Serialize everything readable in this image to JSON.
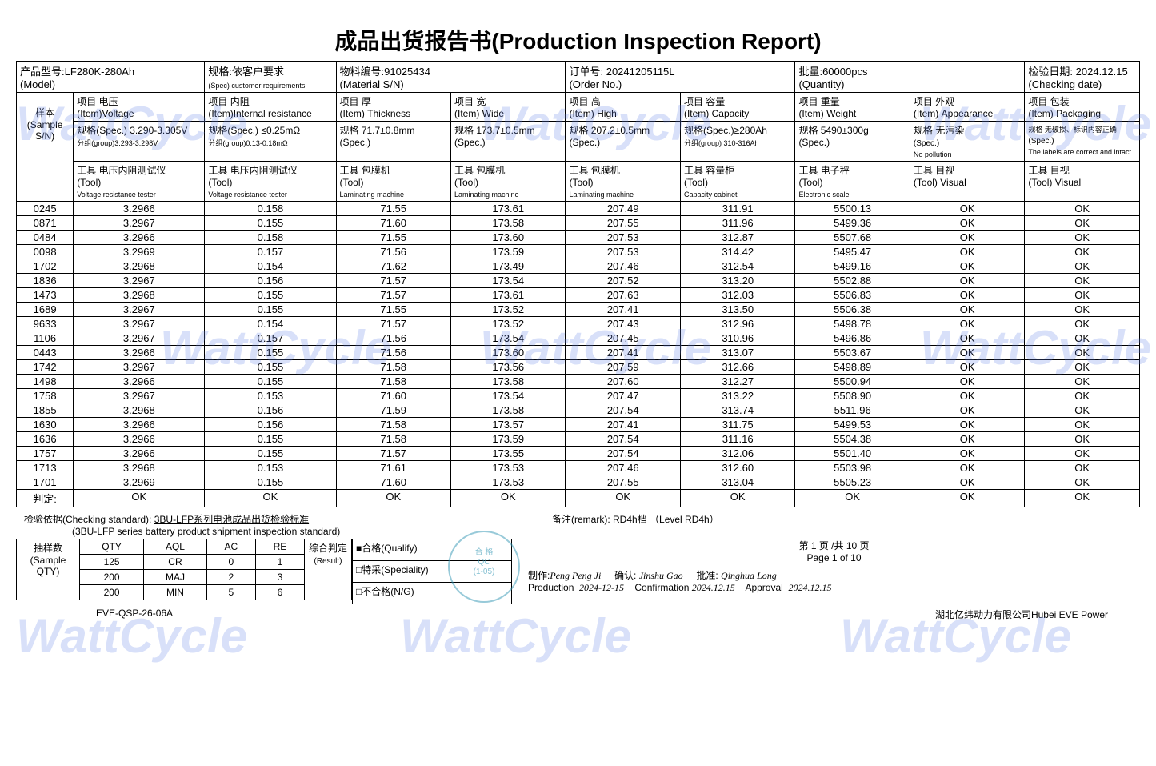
{
  "title": "成品出货报告书(Production Inspection Report)",
  "watermark_text": "WattCycle",
  "header": {
    "model_label_cn": "产品型号:",
    "model_label_en": "(Model)",
    "model_value": "LF280K-280Ah",
    "spec_label_cn": "规格:依客户要求",
    "spec_label_en": "(Spec) customer requirements",
    "material_label_cn": "物料编号:",
    "material_label_en": "(Material S/N)",
    "material_value": "91025434",
    "order_label_cn": "订单号:",
    "order_label_en": "(Order No.)",
    "order_value": "20241205115L",
    "qty_label_cn": "批量:",
    "qty_label_en": "(Quantity)",
    "qty_value": "60000pcs",
    "date_label_cn": "检验日期:",
    "date_label_en": "(Checking date)",
    "date_value": "2024.12.15"
  },
  "sample_label_cn": "样本",
  "sample_label_en": "(Sample S/N)",
  "columns": {
    "voltage": {
      "item_cn": "项目 电压",
      "item_en": "(Item)Voltage",
      "spec_cn": "规格(Spec.) 3.290-3.305V",
      "spec_sub": "分组(group)3.293-3.298V",
      "tool_cn": "工具 电压内阻测试仪",
      "tool_en": "(Tool)",
      "tool_sub": "Voltage resistance tester"
    },
    "ir": {
      "item_cn": "项目 内阻",
      "item_en": "(Item)Internal resistance",
      "spec_cn": "规格(Spec.) ≤0.25mΩ",
      "spec_sub": "分组(group)0.13-0.18mΩ",
      "tool_cn": "工具 电压内阻测试仪",
      "tool_en": "(Tool)",
      "tool_sub": "Voltage resistance tester"
    },
    "thick": {
      "item_cn": "项目 厚",
      "item_en": "(Item) Thickness",
      "spec_cn": "规格 71.7±0.8mm",
      "spec_sub": "(Spec.)",
      "tool_cn": "工具 包膜机",
      "tool_en": "(Tool)",
      "tool_sub": "Laminating machine"
    },
    "wide": {
      "item_cn": "项目 宽",
      "item_en": "(Item) Wide",
      "spec_cn": "规格 173.7±0.5mm",
      "spec_sub": "(Spec.)",
      "tool_cn": "工具 包膜机",
      "tool_en": "(Tool)",
      "tool_sub": "Laminating machine"
    },
    "high": {
      "item_cn": "项目 高",
      "item_en": "(Item) High",
      "spec_cn": "规格 207.2±0.5mm",
      "spec_sub": "(Spec.)",
      "tool_cn": "工具 包膜机",
      "tool_en": "(Tool)",
      "tool_sub": "Laminating machine"
    },
    "capacity": {
      "item_cn": "项目 容量",
      "item_en": "(Item) Capacity",
      "spec_cn": "规格(Spec.)≥280Ah",
      "spec_sub": "分组(group) 310-316Ah",
      "tool_cn": "工具 容量柜",
      "tool_en": "(Tool)",
      "tool_sub": "Capacity cabinet"
    },
    "weight": {
      "item_cn": "项目 重量",
      "item_en": "(Item) Weight",
      "spec_cn": "规格 5490±300g",
      "spec_sub": "(Spec.)",
      "tool_cn": "工具 电子秤",
      "tool_en": "(Tool)",
      "tool_sub": "Electronic scale"
    },
    "appearance": {
      "item_cn": "项目 外观",
      "item_en": "(Item) Appearance",
      "spec_cn": "规格 无污染",
      "spec_sub": "(Spec.)",
      "spec_sub2": "No pollution",
      "tool_cn": "工具 目视",
      "tool_en": "(Tool) Visual"
    },
    "packaging": {
      "item_cn": "项目 包装",
      "item_en": "(Item) Packaging",
      "spec_cn": "规格 无破损、标识内容正确",
      "spec_sub": "(Spec.)",
      "spec_sub2": "The labels are correct and intact",
      "tool_cn": "工具 目视",
      "tool_en": "(Tool) Visual"
    }
  },
  "rows": [
    {
      "sn": "0245",
      "v": "3.2966",
      "ir": "0.158",
      "t": "71.55",
      "w": "173.61",
      "h": "207.49",
      "cap": "311.91",
      "wt": "5500.13",
      "app": "OK",
      "pkg": "OK"
    },
    {
      "sn": "0871",
      "v": "3.2967",
      "ir": "0.155",
      "t": "71.60",
      "w": "173.58",
      "h": "207.55",
      "cap": "311.96",
      "wt": "5499.36",
      "app": "OK",
      "pkg": "OK"
    },
    {
      "sn": "0484",
      "v": "3.2966",
      "ir": "0.158",
      "t": "71.55",
      "w": "173.60",
      "h": "207.53",
      "cap": "312.87",
      "wt": "5507.68",
      "app": "OK",
      "pkg": "OK"
    },
    {
      "sn": "0098",
      "v": "3.2969",
      "ir": "0.157",
      "t": "71.56",
      "w": "173.59",
      "h": "207.53",
      "cap": "314.42",
      "wt": "5495.47",
      "app": "OK",
      "pkg": "OK"
    },
    {
      "sn": "1702",
      "v": "3.2968",
      "ir": "0.154",
      "t": "71.62",
      "w": "173.49",
      "h": "207.46",
      "cap": "312.54",
      "wt": "5499.16",
      "app": "OK",
      "pkg": "OK"
    },
    {
      "sn": "1836",
      "v": "3.2967",
      "ir": "0.156",
      "t": "71.57",
      "w": "173.54",
      "h": "207.52",
      "cap": "313.20",
      "wt": "5502.88",
      "app": "OK",
      "pkg": "OK"
    },
    {
      "sn": "1473",
      "v": "3.2968",
      "ir": "0.155",
      "t": "71.57",
      "w": "173.61",
      "h": "207.63",
      "cap": "312.03",
      "wt": "5506.83",
      "app": "OK",
      "pkg": "OK"
    },
    {
      "sn": "1689",
      "v": "3.2967",
      "ir": "0.155",
      "t": "71.55",
      "w": "173.52",
      "h": "207.41",
      "cap": "313.50",
      "wt": "5506.38",
      "app": "OK",
      "pkg": "OK"
    },
    {
      "sn": "9633",
      "v": "3.2967",
      "ir": "0.154",
      "t": "71.57",
      "w": "173.52",
      "h": "207.43",
      "cap": "312.96",
      "wt": "5498.78",
      "app": "OK",
      "pkg": "OK"
    },
    {
      "sn": "1106",
      "v": "3.2967",
      "ir": "0.157",
      "t": "71.56",
      "w": "173.54",
      "h": "207.45",
      "cap": "310.96",
      "wt": "5496.86",
      "app": "OK",
      "pkg": "OK"
    },
    {
      "sn": "0443",
      "v": "3.2966",
      "ir": "0.155",
      "t": "71.56",
      "w": "173.60",
      "h": "207.41",
      "cap": "313.07",
      "wt": "5503.67",
      "app": "OK",
      "pkg": "OK"
    },
    {
      "sn": "1742",
      "v": "3.2967",
      "ir": "0.155",
      "t": "71.58",
      "w": "173.56",
      "h": "207.59",
      "cap": "312.66",
      "wt": "5498.89",
      "app": "OK",
      "pkg": "OK"
    },
    {
      "sn": "1498",
      "v": "3.2966",
      "ir": "0.155",
      "t": "71.58",
      "w": "173.58",
      "h": "207.60",
      "cap": "312.27",
      "wt": "5500.94",
      "app": "OK",
      "pkg": "OK"
    },
    {
      "sn": "1758",
      "v": "3.2967",
      "ir": "0.153",
      "t": "71.60",
      "w": "173.54",
      "h": "207.47",
      "cap": "313.22",
      "wt": "5508.90",
      "app": "OK",
      "pkg": "OK"
    },
    {
      "sn": "1855",
      "v": "3.2968",
      "ir": "0.156",
      "t": "71.59",
      "w": "173.58",
      "h": "207.54",
      "cap": "313.74",
      "wt": "5511.96",
      "app": "OK",
      "pkg": "OK"
    },
    {
      "sn": "1630",
      "v": "3.2966",
      "ir": "0.156",
      "t": "71.58",
      "w": "173.57",
      "h": "207.41",
      "cap": "311.75",
      "wt": "5499.53",
      "app": "OK",
      "pkg": "OK"
    },
    {
      "sn": "1636",
      "v": "3.2966",
      "ir": "0.155",
      "t": "71.58",
      "w": "173.59",
      "h": "207.54",
      "cap": "311.16",
      "wt": "5504.38",
      "app": "OK",
      "pkg": "OK"
    },
    {
      "sn": "1757",
      "v": "3.2966",
      "ir": "0.155",
      "t": "71.57",
      "w": "173.55",
      "h": "207.54",
      "cap": "312.06",
      "wt": "5501.40",
      "app": "OK",
      "pkg": "OK"
    },
    {
      "sn": "1713",
      "v": "3.2968",
      "ir": "0.153",
      "t": "71.61",
      "w": "173.53",
      "h": "207.46",
      "cap": "312.60",
      "wt": "5503.98",
      "app": "OK",
      "pkg": "OK"
    },
    {
      "sn": "1701",
      "v": "3.2969",
      "ir": "0.155",
      "t": "71.60",
      "w": "173.53",
      "h": "207.55",
      "cap": "313.04",
      "wt": "5505.23",
      "app": "OK",
      "pkg": "OK"
    }
  ],
  "verdict": {
    "label_cn": "判定:",
    "values": [
      "OK",
      "OK",
      "OK",
      "OK",
      "OK",
      "OK",
      "OK",
      "OK",
      "OK"
    ]
  },
  "checking_standard_label": "检验依据(Checking standard):",
  "checking_standard_value": "3BU-LFP系列电池成品出货检验标准",
  "checking_standard_sub": "(3BU-LFP series battery product shipment inspection standard)",
  "remark_label": "备注(remark):",
  "remark_value": "RD4h档 （Level RD4h）",
  "page_cn": "第 1 页 /共 10 页",
  "page_en": "Page 1 of 10",
  "sample_qty_label_cn": "抽样数",
  "sample_qty_label_en": "(Sample QTY)",
  "sample_table": {
    "headers": [
      "QTY",
      "AQL",
      "AC",
      "RE"
    ],
    "rows": [
      [
        "125",
        "CR",
        "0",
        "1"
      ],
      [
        "200",
        "MAJ",
        "2",
        "3"
      ],
      [
        "200",
        "MIN",
        "5",
        "6"
      ]
    ]
  },
  "result_label_cn": "综合判定",
  "result_label_en": "(Result)",
  "result_options": {
    "qualify": "■合格(Qualify)",
    "special": "□特采(Speciality)",
    "ng": "□不合格(N/G)"
  },
  "signatures": {
    "prod_label": "制作:",
    "prod_name": "Peng Peng  Ji",
    "prod_en": "Production",
    "prod_date": "2024-12-15",
    "conf_label": "确认:",
    "conf_name": "Jinshu Gao",
    "conf_en": "Confirmation",
    "conf_date": "2024.12.15",
    "appr_label": "批准:",
    "appr_name": "Qinghua Long",
    "appr_en": "Approval",
    "appr_date": "2024.12.15"
  },
  "doc_no": "EVE-QSP-26-06A",
  "company": "湖北亿纬动力有限公司Hubei EVE Power",
  "stamp_text": "合 格\\nQC\\n(1-05)"
}
